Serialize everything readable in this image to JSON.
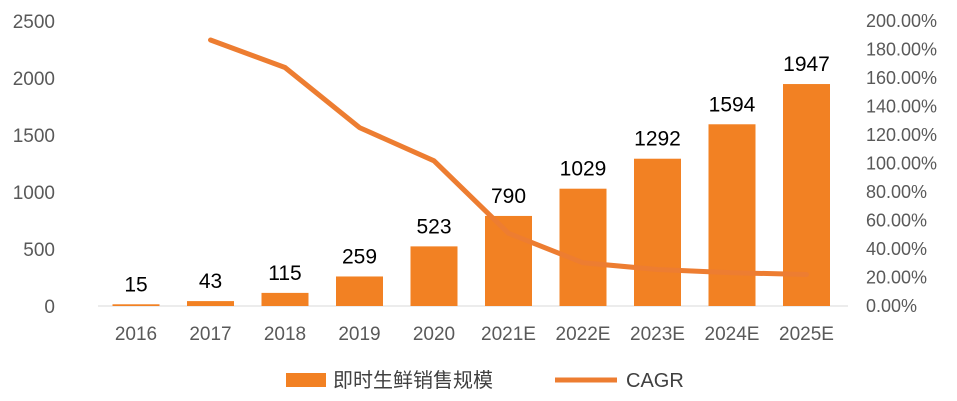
{
  "chart_data": {
    "type": "bar",
    "title": "",
    "xlabel": "",
    "ylabel": "",
    "categories": [
      "2016",
      "2017",
      "2018",
      "2019",
      "2020",
      "2021E",
      "2022E",
      "2023E",
      "2024E",
      "2025E"
    ],
    "series": [
      {
        "name": "即时生鲜销售规模",
        "type": "bar",
        "axis": "left",
        "color": "#F28123",
        "values": [
          15,
          43,
          115,
          259,
          523,
          790,
          1029,
          1292,
          1594,
          1947
        ],
        "labels": [
          "15",
          "43",
          "115",
          "259",
          "523",
          "790",
          "1029",
          "1292",
          "1594",
          "1947"
        ]
      },
      {
        "name": "CAGR",
        "type": "line",
        "axis": "right",
        "color": "#ED7D31",
        "values": [
          null,
          1.867,
          1.674,
          1.252,
          1.019,
          0.51,
          0.303,
          0.256,
          0.234,
          0.221
        ]
      }
    ],
    "ylim": [
      0,
      2500
    ],
    "y_ticks": [
      0,
      500,
      1000,
      1500,
      2000,
      2500
    ],
    "y_tick_labels": [
      "0",
      "500",
      "1000",
      "1500",
      "2000",
      "2500"
    ],
    "y2lim": [
      0,
      2
    ],
    "y2_ticks": [
      0,
      0.2,
      0.4,
      0.6,
      0.8,
      1.0,
      1.2,
      1.4,
      1.6,
      1.8,
      2.0
    ],
    "y2_tick_labels": [
      "0.00%",
      "20.00%",
      "40.00%",
      "60.00%",
      "80.00%",
      "100.00%",
      "120.00%",
      "140.00%",
      "160.00%",
      "180.00%",
      "200.00%"
    ],
    "grid": false,
    "legend": {
      "position": "bottom",
      "entries": [
        "即时生鲜销售规模",
        "CAGR"
      ]
    }
  }
}
